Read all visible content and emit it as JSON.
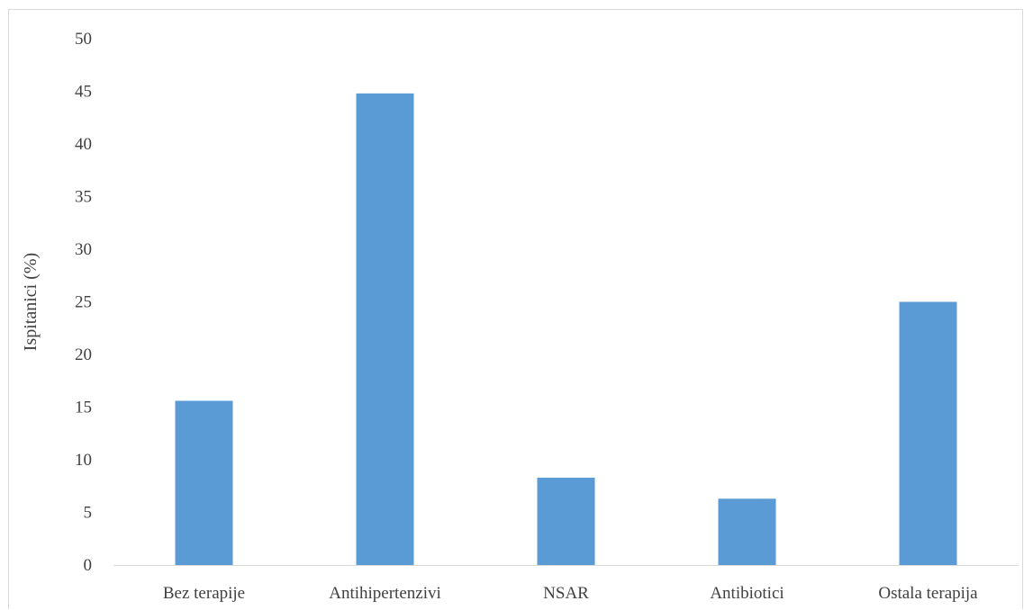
{
  "chart_data": {
    "type": "bar",
    "title": "",
    "xlabel": "",
    "ylabel": "Ispitanici (%)",
    "categories": [
      "Bez terapije",
      "Antihipertenzivi",
      "NSAR",
      "Antibiotici",
      "Ostala terapija"
    ],
    "values": [
      15.6,
      44.8,
      8.3,
      6.3,
      25.0
    ],
    "ylim": [
      0,
      50
    ],
    "yticks": [
      0,
      5,
      10,
      15,
      20,
      25,
      30,
      35,
      40,
      45,
      50
    ],
    "grid": false,
    "legend": "none",
    "bar_color": "#5b9bd5",
    "axis_color": "#d9d9d9",
    "text_color": "#404040"
  }
}
